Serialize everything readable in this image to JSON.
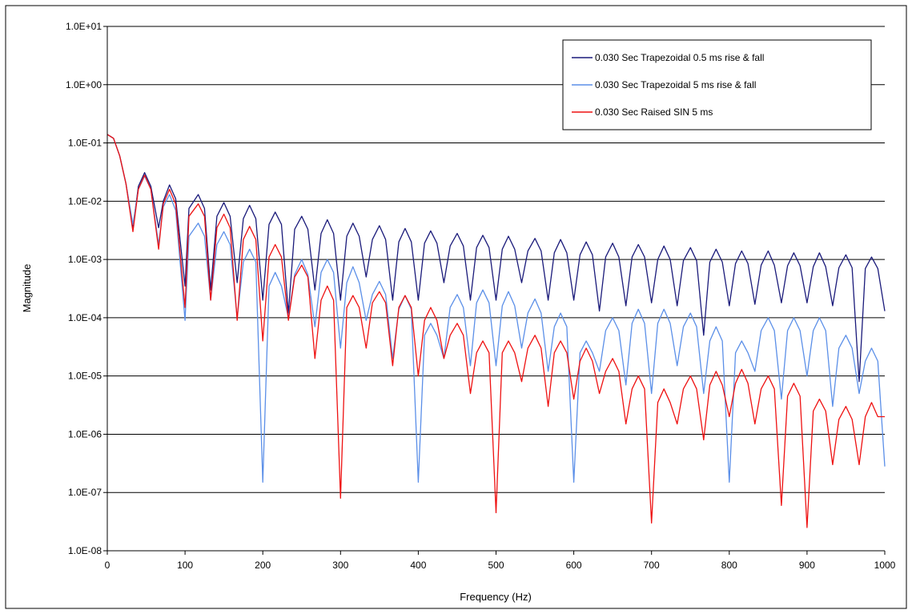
{
  "chart_data": {
    "type": "line",
    "title": "",
    "xlabel": "Frequency (Hz)",
    "ylabel": "Magnitude",
    "x_scale": "linear",
    "y_scale": "log",
    "xlim": [
      0,
      1000
    ],
    "ylim": [
      1e-08,
      10
    ],
    "x_ticks": [
      0,
      100,
      200,
      300,
      400,
      500,
      600,
      700,
      800,
      900,
      1000
    ],
    "x_tick_labels": [
      "0",
      "100",
      "200",
      "300",
      "400",
      "500",
      "600",
      "700",
      "800",
      "900",
      "1000"
    ],
    "y_ticks": [
      1e-08,
      1e-07,
      1e-06,
      1e-05,
      0.0001,
      0.001,
      0.01,
      0.1,
      1,
      10
    ],
    "y_tick_labels": [
      "1.0E-08",
      "1.0E-07",
      "1.0E-06",
      "1.0E-05",
      "1.0E-04",
      "1.0E-03",
      "1.0E-02",
      "1.0E-01",
      "1.0E+00",
      "1.0E+01"
    ],
    "grid": "horizontal major gridlines",
    "legend_position": "top-right",
    "series": [
      {
        "name": "0.030 Sec Trapezoidal 0.5 ms rise & fall",
        "color": "#1a1a7a",
        "x": [
          0,
          8,
          16,
          24,
          33,
          40,
          48,
          56,
          66,
          72,
          80,
          88,
          100,
          105,
          117,
          125,
          133,
          141,
          150,
          158,
          167,
          175,
          183,
          191,
          200,
          208,
          216,
          224,
          233,
          241,
          250,
          258,
          267,
          275,
          283,
          291,
          300,
          308,
          316,
          324,
          333,
          341,
          350,
          358,
          367,
          375,
          383,
          391,
          400,
          408,
          416,
          424,
          433,
          441,
          450,
          458,
          467,
          475,
          483,
          491,
          500,
          508,
          516,
          524,
          533,
          541,
          550,
          558,
          567,
          575,
          583,
          591,
          600,
          608,
          616,
          624,
          633,
          641,
          650,
          658,
          667,
          675,
          683,
          691,
          700,
          708,
          716,
          724,
          733,
          741,
          750,
          758,
          767,
          775,
          783,
          791,
          800,
          808,
          816,
          824,
          833,
          841,
          850,
          858,
          867,
          875,
          883,
          891,
          900,
          908,
          916,
          924,
          933,
          941,
          950,
          958,
          967,
          975,
          983,
          991,
          1000
        ],
        "y": [
          0.14,
          0.12,
          0.06,
          0.02,
          0.0035,
          0.018,
          0.031,
          0.018,
          0.0035,
          0.01,
          0.019,
          0.011,
          0.00035,
          0.0075,
          0.013,
          0.0075,
          0.0003,
          0.0055,
          0.0095,
          0.0055,
          0.0004,
          0.005,
          0.0085,
          0.005,
          0.0002,
          0.004,
          0.0065,
          0.004,
          0.00012,
          0.0033,
          0.0055,
          0.0033,
          0.0003,
          0.0028,
          0.0048,
          0.0028,
          0.0002,
          0.0025,
          0.0042,
          0.0025,
          0.0005,
          0.0022,
          0.0038,
          0.0022,
          0.0002,
          0.002,
          0.0034,
          0.002,
          0.0002,
          0.0019,
          0.0031,
          0.0019,
          0.0004,
          0.0017,
          0.0028,
          0.0017,
          0.0002,
          0.0016,
          0.0026,
          0.0016,
          0.0002,
          0.0015,
          0.0025,
          0.0015,
          0.0004,
          0.0014,
          0.0023,
          0.0014,
          0.0002,
          0.0013,
          0.0022,
          0.0013,
          0.0002,
          0.0012,
          0.002,
          0.0012,
          0.00013,
          0.0011,
          0.0019,
          0.0011,
          0.00016,
          0.0011,
          0.0018,
          0.0011,
          0.00018,
          0.001,
          0.0017,
          0.001,
          0.00016,
          0.00095,
          0.0016,
          0.00095,
          5e-05,
          0.0009,
          0.0015,
          0.0009,
          0.00016,
          0.00085,
          0.0014,
          0.00085,
          0.00017,
          0.0008,
          0.0014,
          0.0008,
          0.00018,
          0.00078,
          0.0013,
          0.00078,
          0.00018,
          0.00075,
          0.0013,
          0.00075,
          0.00016,
          0.00072,
          0.0012,
          0.00072,
          8e-06,
          0.0007,
          0.0011,
          0.0007,
          0.00013
        ]
      },
      {
        "name": "0.030 Sec Trapezoidal 5 ms rise & fall",
        "color": "#5b8fe8",
        "x": [
          0,
          8,
          16,
          24,
          33,
          40,
          48,
          56,
          66,
          72,
          80,
          88,
          100,
          105,
          117,
          125,
          133,
          141,
          150,
          158,
          167,
          175,
          183,
          191,
          200,
          208,
          216,
          224,
          233,
          241,
          250,
          258,
          267,
          275,
          283,
          291,
          300,
          308,
          316,
          324,
          333,
          341,
          350,
          358,
          367,
          375,
          383,
          391,
          400,
          408,
          416,
          424,
          433,
          441,
          450,
          458,
          467,
          475,
          483,
          491,
          500,
          508,
          516,
          524,
          533,
          541,
          550,
          558,
          567,
          575,
          583,
          591,
          600,
          608,
          616,
          624,
          633,
          641,
          650,
          658,
          667,
          675,
          683,
          691,
          700,
          708,
          716,
          724,
          733,
          741,
          750,
          758,
          767,
          775,
          783,
          791,
          800,
          808,
          816,
          824,
          833,
          841,
          850,
          858,
          867,
          875,
          883,
          891,
          900,
          908,
          916,
          924,
          933,
          941,
          950,
          958,
          967,
          975,
          983,
          991,
          1000
        ],
        "y": [
          0.14,
          0.12,
          0.06,
          0.02,
          0.004,
          0.016,
          0.027,
          0.016,
          0.0018,
          0.008,
          0.013,
          0.007,
          9e-05,
          0.0025,
          0.0042,
          0.0025,
          0.0002,
          0.0018,
          0.003,
          0.0018,
          0.0001,
          0.0009,
          0.0015,
          0.0009,
          1.5e-07,
          0.00035,
          0.0006,
          0.00035,
          0.0001,
          0.00055,
          0.001,
          0.00055,
          7e-05,
          0.0006,
          0.001,
          0.0006,
          3e-05,
          0.0004,
          0.00075,
          0.0004,
          9e-05,
          0.00025,
          0.00042,
          0.00025,
          2e-05,
          0.00014,
          0.00024,
          0.00014,
          1.5e-07,
          5e-05,
          8e-05,
          5e-05,
          2e-05,
          0.00015,
          0.00025,
          0.00015,
          1.5e-05,
          0.00018,
          0.0003,
          0.00018,
          1.5e-05,
          0.00016,
          0.00028,
          0.00016,
          3e-05,
          0.00012,
          0.00021,
          0.00012,
          1.2e-05,
          7e-05,
          0.00012,
          7e-05,
          1.5e-07,
          2.5e-05,
          4e-05,
          2.5e-05,
          1.2e-05,
          6e-05,
          0.0001,
          6e-05,
          7e-06,
          8e-05,
          0.00014,
          8e-05,
          5e-06,
          8e-05,
          0.00014,
          8e-05,
          1.5e-05,
          7e-05,
          0.00012,
          7e-05,
          5e-06,
          4e-05,
          7e-05,
          4e-05,
          1.5e-07,
          2.5e-05,
          4e-05,
          2.5e-05,
          1.2e-05,
          6e-05,
          0.0001,
          6e-05,
          4e-06,
          6e-05,
          0.0001,
          6e-05,
          1e-05,
          6e-05,
          0.0001,
          6e-05,
          3e-06,
          3e-05,
          5e-05,
          3e-05,
          5e-06,
          1.8e-05,
          3e-05,
          1.8e-05,
          2.8e-07
        ]
      },
      {
        "name": "0.030 Sec Raised SIN 5 ms",
        "color": "#ee1111",
        "x": [
          0,
          8,
          16,
          24,
          33,
          40,
          48,
          56,
          66,
          72,
          80,
          88,
          100,
          105,
          117,
          125,
          133,
          141,
          150,
          158,
          167,
          175,
          183,
          191,
          200,
          208,
          216,
          224,
          233,
          241,
          250,
          258,
          267,
          275,
          283,
          291,
          300,
          308,
          316,
          324,
          333,
          341,
          350,
          358,
          367,
          375,
          383,
          391,
          400,
          408,
          416,
          424,
          433,
          441,
          450,
          458,
          467,
          475,
          483,
          491,
          500,
          508,
          516,
          524,
          533,
          541,
          550,
          558,
          567,
          575,
          583,
          591,
          600,
          608,
          616,
          624,
          633,
          641,
          650,
          658,
          667,
          675,
          683,
          691,
          700,
          708,
          716,
          724,
          733,
          741,
          750,
          758,
          767,
          775,
          783,
          791,
          800,
          808,
          816,
          824,
          833,
          841,
          850,
          858,
          867,
          875,
          883,
          891,
          900,
          908,
          916,
          924,
          933,
          941,
          950,
          958,
          967,
          975,
          983,
          991,
          1000
        ],
        "y": [
          0.14,
          0.12,
          0.06,
          0.02,
          0.003,
          0.016,
          0.028,
          0.016,
          0.0015,
          0.009,
          0.016,
          0.009,
          0.00015,
          0.0055,
          0.009,
          0.0055,
          0.0002,
          0.0035,
          0.006,
          0.0035,
          9e-05,
          0.0022,
          0.0037,
          0.0022,
          4e-05,
          0.0011,
          0.0018,
          0.0011,
          9e-05,
          0.0005,
          0.0008,
          0.0005,
          2e-05,
          0.0002,
          0.00035,
          0.0002,
          8e-08,
          0.00015,
          0.00024,
          0.00015,
          3e-05,
          0.00018,
          0.00028,
          0.00018,
          1.5e-05,
          0.00015,
          0.00024,
          0.00015,
          1e-05,
          9e-05,
          0.00015,
          9e-05,
          2e-05,
          5e-05,
          8e-05,
          5e-05,
          5e-06,
          2.5e-05,
          4e-05,
          2.5e-05,
          4.5e-08,
          2.5e-05,
          4e-05,
          2.5e-05,
          8e-06,
          3e-05,
          5e-05,
          3e-05,
          3e-06,
          2.5e-05,
          4e-05,
          2.5e-05,
          4e-06,
          1.8e-05,
          3e-05,
          1.8e-05,
          5e-06,
          1.2e-05,
          2e-05,
          1.2e-05,
          1.5e-06,
          6e-06,
          1e-05,
          6e-06,
          3e-08,
          3.5e-06,
          6e-06,
          3.5e-06,
          1.5e-06,
          6e-06,
          1e-05,
          6e-06,
          8e-07,
          7e-06,
          1.2e-05,
          7e-06,
          2e-06,
          7.5e-06,
          1.3e-05,
          7.5e-06,
          1.5e-06,
          6e-06,
          1e-05,
          6e-06,
          6e-08,
          4.5e-06,
          7.5e-06,
          4.5e-06,
          2.5e-08,
          2.5e-06,
          4e-06,
          2.5e-06,
          3e-07,
          1.8e-06,
          3e-06,
          1.8e-06,
          3e-07,
          2e-06,
          3.5e-06,
          2e-06,
          2e-06
        ]
      }
    ]
  }
}
